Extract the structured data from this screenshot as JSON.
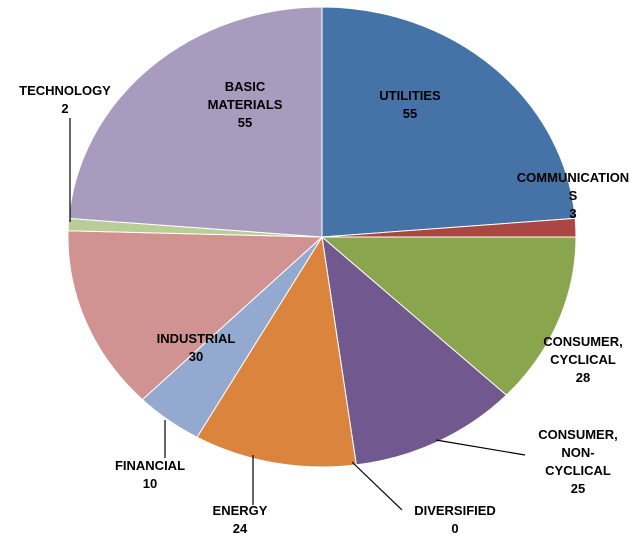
{
  "chart_data": {
    "type": "pie",
    "categories": [
      "UTILITIES",
      "COMMUNICATIONS",
      "CONSUMER, CYCLICAL",
      "CONSUMER, NON-CYCLICAL",
      "DIVERSIFIED",
      "ENERGY",
      "FINANCIAL",
      "INDUSTRIAL",
      "TECHNOLOGY",
      "BASIC MATERIALS"
    ],
    "values": [
      55,
      3,
      28,
      25,
      0,
      24,
      10,
      30,
      2,
      55
    ],
    "colors": [
      "#4572a7",
      "#aa4643",
      "#89a54e",
      "#71588f",
      "#4198af",
      "#db843d",
      "#93a9cf",
      "#d19392",
      "#b9cd96",
      "#a99bbd"
    ]
  }
}
